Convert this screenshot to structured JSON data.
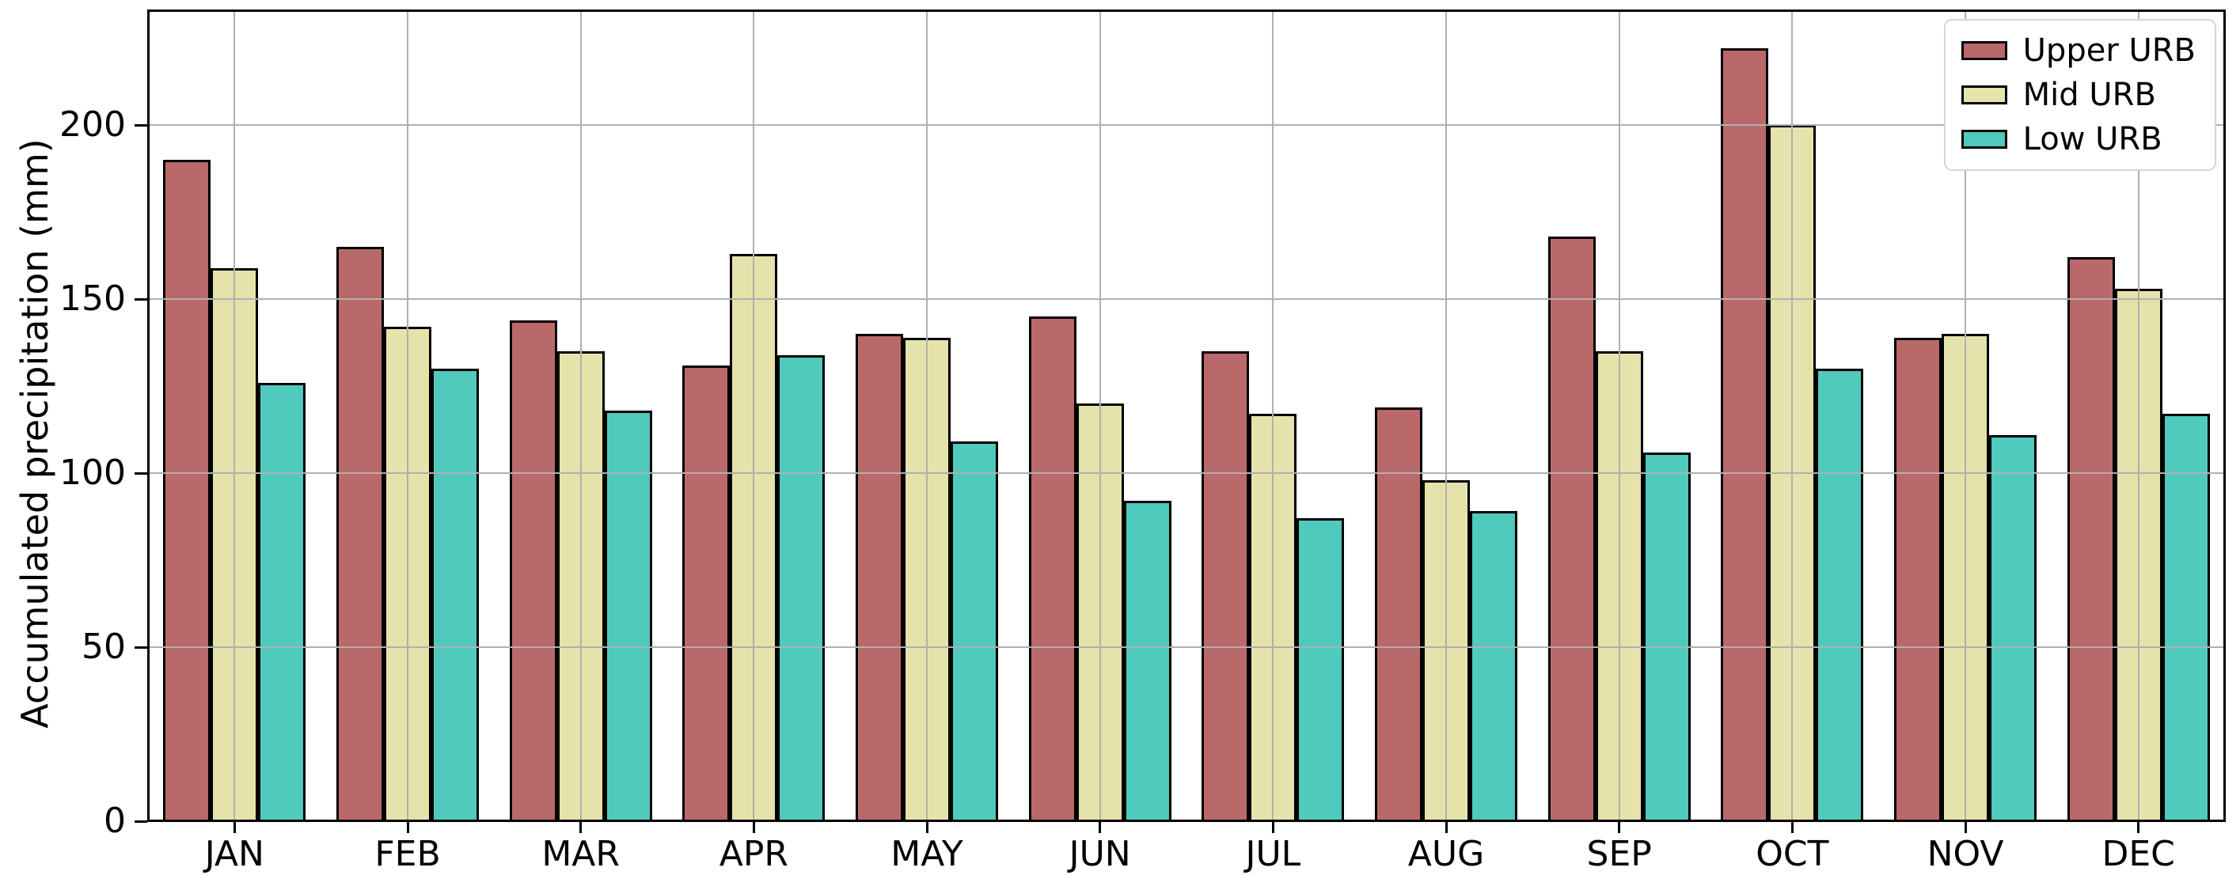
{
  "chart_data": {
    "type": "bar",
    "title": "",
    "xlabel": "",
    "ylabel": "Accumulated precipitation (mm)",
    "categories": [
      "JAN",
      "FEB",
      "MAR",
      "APR",
      "MAY",
      "JUN",
      "JUL",
      "AUG",
      "SEP",
      "OCT",
      "NOV",
      "DEC"
    ],
    "series": [
      {
        "name": "Upper URB",
        "color": "#ba696b",
        "values": [
          190,
          165,
          144,
          131,
          140,
          145,
          135,
          119,
          168,
          222,
          139,
          162
        ]
      },
      {
        "name": "Mid URB",
        "color": "#e6e2ac",
        "values": [
          159,
          142,
          135,
          163,
          139,
          120,
          117,
          98,
          135,
          200,
          140,
          153
        ]
      },
      {
        "name": "Low URB",
        "color": "#4fcabc",
        "values": [
          126,
          130,
          118,
          134,
          109,
          92,
          87,
          89,
          106,
          130,
          111,
          117
        ]
      }
    ],
    "ylim": [
      0,
      233
    ],
    "yticks": [
      0,
      50,
      100,
      150,
      200
    ],
    "grid": true,
    "grid_on_top": true,
    "grid_color": "#b0b0b0",
    "bar_edge_color": "#000000",
    "legend_position": "upper right"
  }
}
